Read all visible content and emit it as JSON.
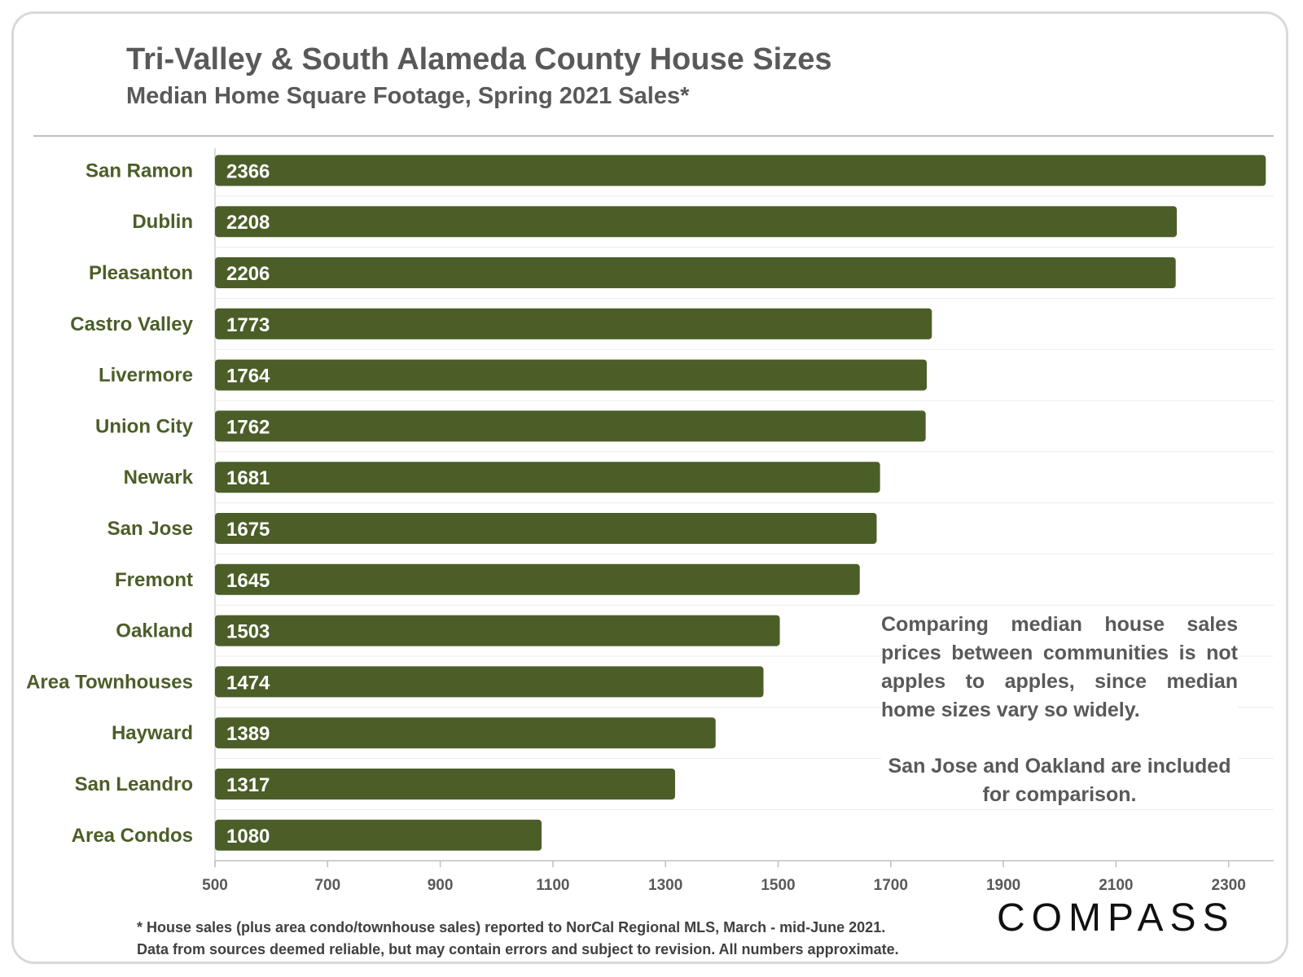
{
  "header": {
    "title": "Tri-Valley & South Alameda County House Sizes",
    "subtitle": "Median Home Square Footage, Spring 2021 Sales*"
  },
  "chart_data": {
    "type": "bar",
    "orientation": "horizontal",
    "categories": [
      "San Ramon",
      "Dublin",
      "Pleasanton",
      "Castro Valley",
      "Livermore",
      "Union City",
      "Newark",
      "San Jose",
      "Fremont",
      "Oakland",
      "Area Townhouses",
      "Hayward",
      "San Leandro",
      "Area Condos"
    ],
    "values": [
      2366,
      2208,
      2206,
      1773,
      1764,
      1762,
      1681,
      1675,
      1645,
      1503,
      1474,
      1389,
      1317,
      1080
    ],
    "x_ticks": [
      "500",
      "700",
      "900",
      "1100",
      "1300",
      "1500",
      "1700",
      "1900",
      "2100",
      "2300"
    ],
    "xlim": [
      500,
      2380
    ],
    "grid": true,
    "bar_color": "#4b5e28",
    "label_color": "#4b5e28",
    "value_label_color": "#ffffff"
  },
  "annotation": {
    "paragraph1": "Comparing median house sales prices between communities is not apples to apples, since median home sizes vary so widely.",
    "paragraph2": "San Jose and Oakland are included for comparison."
  },
  "footnote": {
    "line1": "* House sales (plus area condo/townhouse sales) reported to NorCal Regional MLS, March - mid-June 2021.",
    "line2": "Data from sources deemed reliable, but may contain errors and subject to revision. All numbers approximate."
  },
  "brand": {
    "logo_text": "COMPASS"
  }
}
